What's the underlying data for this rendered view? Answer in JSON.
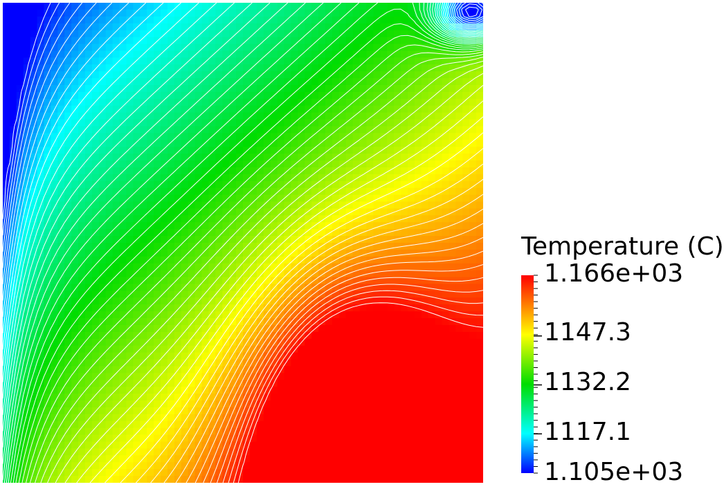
{
  "chart_data": {
    "type": "heatmap",
    "field": "Temperature",
    "colorbar": {
      "title": "Temperature (C)",
      "max_label": "1.166e+03",
      "min_label": "1.105e+03",
      "max": 1166,
      "min": 1105,
      "ticks": [
        {
          "value": 1147.3,
          "label": "1147.3"
        },
        {
          "value": 1132.2,
          "label": "1132.2"
        },
        {
          "value": 1117.1,
          "label": "1117.1"
        }
      ],
      "colormap": "rainbow (blue-cyan-green-yellow-red)"
    },
    "contour_lines": {
      "color": "#ffffff",
      "count": 50
    },
    "regions": [
      {
        "location": "top-left corner",
        "approx_value": 1105
      },
      {
        "location": "bottom-center",
        "approx_value": 1166
      },
      {
        "location": "right edge",
        "approx_value": 1153
      }
    ]
  },
  "colors": {
    "contour": "#ffffff",
    "background": "#ffffff"
  }
}
